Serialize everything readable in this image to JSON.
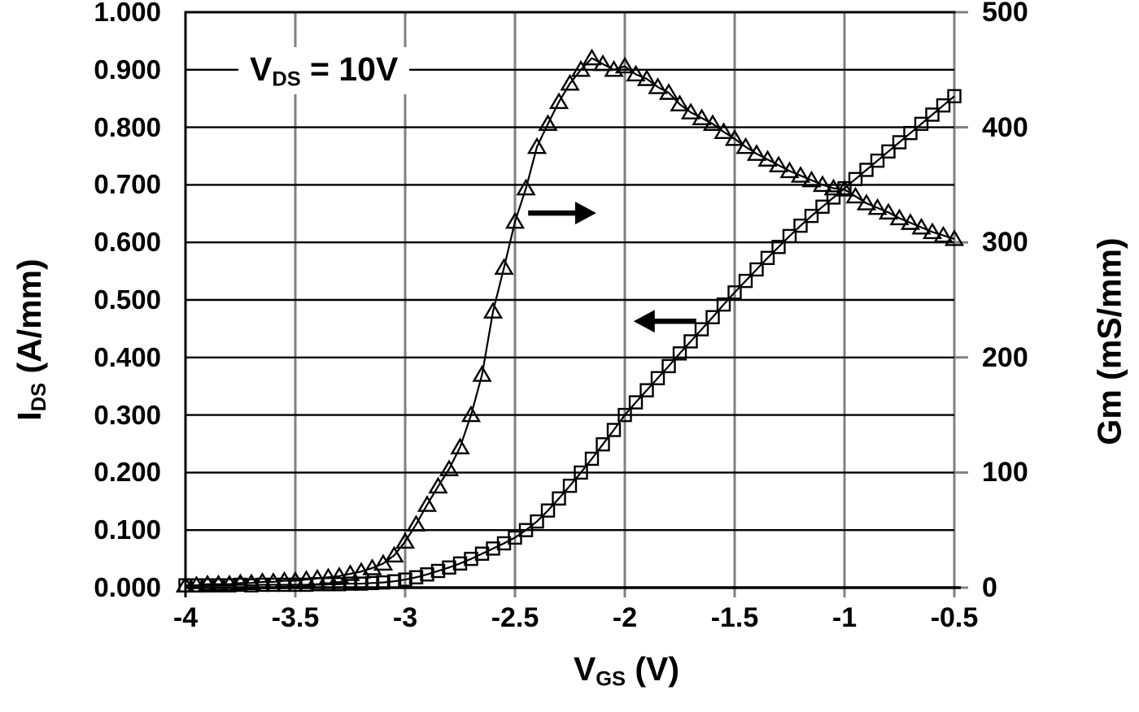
{
  "figure": {
    "background": "#ffffff",
    "annotation": {
      "symbol": "V",
      "subscript": "DS",
      "rest": " = 10V"
    },
    "x_axis": {
      "title": {
        "symbol": "V",
        "subscript": "GS",
        "unit": " (V)"
      },
      "ticks": [
        "-4",
        "-3.5",
        "-3",
        "-2.5",
        "-2",
        "-1.5",
        "-1",
        "-0.5"
      ],
      "tick_values": [
        -4,
        -3.5,
        -3,
        -2.5,
        -2,
        -1.5,
        -1,
        -0.5
      ]
    },
    "y_left": {
      "title": {
        "symbol": "I",
        "subscript": "DS",
        "unit": " (A/mm)"
      },
      "ticks": [
        "1.000",
        "0.900",
        "0.800",
        "0.700",
        "0.600",
        "0.500",
        "0.400",
        "0.300",
        "0.200",
        "0.100",
        "0.000"
      ],
      "tick_values": [
        1.0,
        0.9,
        0.8,
        0.7,
        0.6,
        0.5,
        0.4,
        0.3,
        0.2,
        0.1,
        0.0
      ]
    },
    "y_right": {
      "title": {
        "text": "Gm (mS/mm)"
      },
      "ticks": [
        "500",
        "400",
        "300",
        "200",
        "100",
        "0"
      ],
      "tick_values": [
        500,
        400,
        300,
        200,
        100,
        0
      ]
    },
    "arrows": [
      {
        "direction": "right",
        "meaning": "Gm curve reads on right axis",
        "x_from": -2.44,
        "x_to": -2.13,
        "y_level": 0.651
      },
      {
        "direction": "left",
        "meaning": "IDS curve reads on left axis",
        "x_from": -1.675,
        "x_to": -1.96,
        "y_level": 0.463
      }
    ],
    "colors": {
      "curve": "#000000",
      "h_grid": "#000000",
      "v_grid": "#808080",
      "tick": "#808080",
      "text": "#000000"
    }
  },
  "chart_data": {
    "type": "line",
    "title": "",
    "xlabel": "VGS (V)",
    "ylabel_left": "IDS (A/mm)",
    "ylabel_right": "Gm (mS/mm)",
    "x_range": [
      -4,
      -0.5
    ],
    "y_left_range": [
      0,
      1.0
    ],
    "y_right_range": [
      0,
      500
    ],
    "grid": true,
    "legend": "none",
    "x": [
      -4.0,
      -3.95,
      -3.9,
      -3.85,
      -3.8,
      -3.75,
      -3.7,
      -3.65,
      -3.6,
      -3.55,
      -3.5,
      -3.45,
      -3.4,
      -3.35,
      -3.3,
      -3.25,
      -3.2,
      -3.15,
      -3.1,
      -3.05,
      -3.0,
      -2.95,
      -2.9,
      -2.85,
      -2.8,
      -2.75,
      -2.7,
      -2.65,
      -2.6,
      -2.55,
      -2.5,
      -2.45,
      -2.4,
      -2.35,
      -2.3,
      -2.25,
      -2.2,
      -2.15,
      -2.1,
      -2.05,
      -2.0,
      -1.95,
      -1.9,
      -1.85,
      -1.8,
      -1.75,
      -1.7,
      -1.65,
      -1.6,
      -1.55,
      -1.5,
      -1.45,
      -1.4,
      -1.35,
      -1.3,
      -1.25,
      -1.2,
      -1.15,
      -1.1,
      -1.05,
      -1.0,
      -0.95,
      -0.9,
      -0.85,
      -0.8,
      -0.75,
      -0.7,
      -0.65,
      -0.6,
      -0.55,
      -0.5
    ],
    "series": [
      {
        "name": "IDS",
        "axis": "left",
        "marker": "square",
        "units": "A/mm",
        "values": [
          0.004,
          0.004,
          0.004,
          0.004,
          0.004,
          0.005,
          0.004,
          0.005,
          0.005,
          0.005,
          0.005,
          0.005,
          0.006,
          0.006,
          0.006,
          0.007,
          0.007,
          0.008,
          0.009,
          0.011,
          0.014,
          0.018,
          0.023,
          0.029,
          0.035,
          0.042,
          0.05,
          0.059,
          0.068,
          0.077,
          0.087,
          0.1,
          0.115,
          0.134,
          0.155,
          0.177,
          0.2,
          0.224,
          0.249,
          0.274,
          0.3,
          0.322,
          0.343,
          0.364,
          0.385,
          0.407,
          0.428,
          0.449,
          0.47,
          0.492,
          0.513,
          0.533,
          0.553,
          0.573,
          0.592,
          0.611,
          0.629,
          0.646,
          0.662,
          0.678,
          0.694,
          0.71,
          0.726,
          0.742,
          0.758,
          0.774,
          0.79,
          0.806,
          0.822,
          0.838,
          0.854
        ]
      },
      {
        "name": "Gm",
        "axis": "right",
        "marker": "triangle",
        "units": "mS/mm",
        "values": [
          2,
          2,
          3,
          3,
          3,
          4,
          4,
          5,
          5,
          6,
          6,
          7,
          8,
          9,
          10,
          12,
          14,
          17,
          21,
          28,
          40,
          55,
          72,
          88,
          103,
          122,
          150,
          185,
          240,
          278,
          318,
          347,
          383,
          403,
          422,
          438,
          450,
          460,
          455,
          450,
          453,
          446,
          442,
          435,
          430,
          420,
          413,
          408,
          403,
          396,
          390,
          383,
          377,
          372,
          367,
          362,
          358,
          354,
          350,
          347,
          346,
          340,
          334,
          330,
          326,
          321,
          317,
          313,
          309,
          306,
          303
        ]
      }
    ]
  }
}
